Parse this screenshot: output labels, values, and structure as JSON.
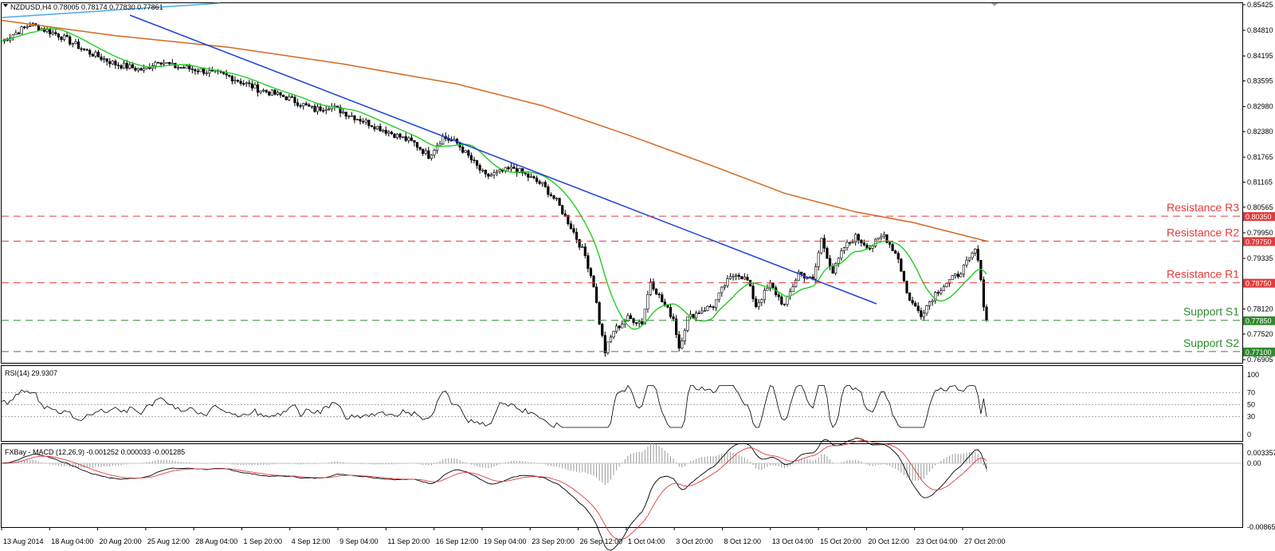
{
  "main": {
    "header": "NZDUSD,H4  0.78005 0.78174 0.77830 0.77861",
    "price_ticks": [
      "0.85425",
      "0.84810",
      "0.84195",
      "0.83595",
      "0.82980",
      "0.82380",
      "0.81765",
      "0.81165",
      "0.80565",
      "0.79950",
      "0.79335",
      "0.78120",
      "0.77520",
      "0.76905"
    ],
    "levels": [
      {
        "name": "Resistance R3",
        "price": 0.8035,
        "tag": "0.80350",
        "color": "#e23b3b"
      },
      {
        "name": "Resistance R2",
        "price": 0.7975,
        "tag": "0.79750",
        "color": "#e23b3b"
      },
      {
        "name": "Resistance R1",
        "price": 0.7875,
        "tag": "0.78750",
        "color": "#e23b3b"
      },
      {
        "name": "Support S1",
        "price": 0.7785,
        "tag": "0.77850",
        "color": "#2e8b2e"
      },
      {
        "name": "Support S2",
        "price": 0.771,
        "tag": "0.77100",
        "color": "#2e8b2e"
      }
    ]
  },
  "rsi": {
    "header": "RSI(14) 29.9307",
    "ticks": [
      "100",
      "70",
      "50",
      "30",
      "0"
    ]
  },
  "macd": {
    "header": "FXBay - MACD (12,26,9) -0.001252 0.000033 -0.001285",
    "ticks": [
      "0.003357",
      "0.00",
      "-0.008657"
    ]
  },
  "x_labels": [
    "13 Aug 2014",
    "18 Aug 04:00",
    "20 Aug 20:00",
    "25 Aug 12:00",
    "28 Aug 04:00",
    "1 Sep 20:00",
    "4 Sep 12:00",
    "9 Sep 04:00",
    "11 Sep 20:00",
    "16 Sep 12:00",
    "19 Sep 04:00",
    "23 Sep 20:00",
    "26 Sep 12:00",
    "1 Oct 04:00",
    "3 Oct 20:00",
    "8 Oct 12:00",
    "13 Oct 04:00",
    "15 Oct 20:00",
    "20 Oct 12:00",
    "23 Oct 04:00",
    "27 Oct 20:00"
  ],
  "colors": {
    "ma_slow": "#d2691e",
    "ma_fast": "#22cc22",
    "trend_down": "#1f3fd8",
    "trend_up": "#4aa8e8",
    "macd_signal": "#e23b3b"
  },
  "chart_data": {
    "type": "candlestick",
    "series_path": [
      [
        0,
        0.8455
      ],
      [
        10,
        0.8495
      ],
      [
        20,
        0.847
      ],
      [
        30,
        0.843
      ],
      [
        40,
        0.84
      ],
      [
        50,
        0.8385
      ],
      [
        55,
        0.841
      ],
      [
        60,
        0.8395
      ],
      [
        70,
        0.8385
      ],
      [
        80,
        0.837
      ],
      [
        90,
        0.834
      ],
      [
        100,
        0.832
      ],
      [
        110,
        0.829
      ],
      [
        115,
        0.83
      ],
      [
        125,
        0.827
      ],
      [
        135,
        0.824
      ],
      [
        145,
        0.821
      ],
      [
        150,
        0.818
      ],
      [
        155,
        0.8225
      ],
      [
        160,
        0.821
      ],
      [
        165,
        0.817
      ],
      [
        170,
        0.813
      ],
      [
        180,
        0.815
      ],
      [
        190,
        0.811
      ],
      [
        195,
        0.807
      ],
      [
        200,
        0.801
      ],
      [
        205,
        0.794
      ],
      [
        208,
        0.787
      ],
      [
        210,
        0.778
      ],
      [
        212,
        0.771
      ],
      [
        215,
        0.776
      ],
      [
        220,
        0.779
      ],
      [
        225,
        0.778
      ],
      [
        228,
        0.788
      ],
      [
        232,
        0.783
      ],
      [
        236,
        0.779
      ],
      [
        238,
        0.772
      ],
      [
        241,
        0.779
      ],
      [
        246,
        0.781
      ],
      [
        250,
        0.782
      ],
      [
        254,
        0.787
      ],
      [
        258,
        0.79
      ],
      [
        262,
        0.788
      ],
      [
        265,
        0.782
      ],
      [
        270,
        0.787
      ],
      [
        275,
        0.782
      ],
      [
        280,
        0.79
      ],
      [
        285,
        0.788
      ],
      [
        288,
        0.798
      ],
      [
        292,
        0.79
      ],
      [
        296,
        0.796
      ],
      [
        300,
        0.7985
      ],
      [
        305,
        0.796
      ],
      [
        310,
        0.799
      ],
      [
        315,
        0.7935
      ],
      [
        318,
        0.785
      ],
      [
        320,
        0.7825
      ],
      [
        323,
        0.78
      ],
      [
        328,
        0.785
      ],
      [
        332,
        0.7875
      ],
      [
        336,
        0.7895
      ],
      [
        340,
        0.793
      ],
      [
        342,
        0.7955
      ],
      [
        344,
        0.789
      ],
      [
        345,
        0.782
      ],
      [
        346,
        0.7785
      ]
    ]
  }
}
